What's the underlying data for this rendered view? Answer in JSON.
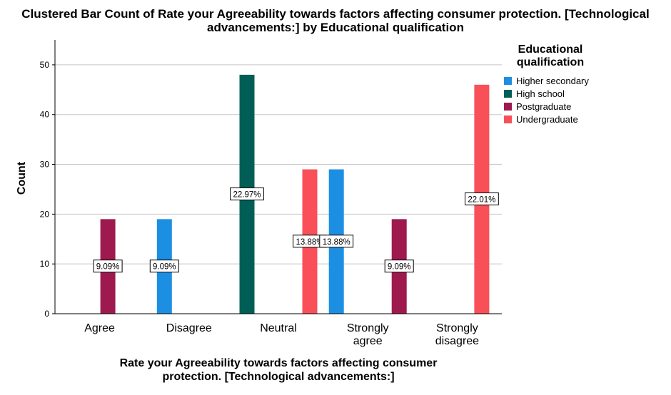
{
  "chart_data": {
    "type": "bar",
    "title": "Clustered Bar Count of Rate your Agreeability towards factors affecting consumer protection. [Technological advancements:] by Educational qualification",
    "title_lines": [
      "Clustered Bar Count of Rate your Agreeability towards factors affecting consumer protection. [Technological",
      "advancements:] by Educational qualification"
    ],
    "xlabel": "Rate your Agreeability towards factors affecting consumer protection. [Technological advancements:]",
    "xlabel_lines": [
      "Rate your Agreeability towards factors affecting consumer",
      "protection. [Technological advancements:]"
    ],
    "ylabel": "Count",
    "ylim": [
      0,
      55
    ],
    "yticks": [
      0,
      10,
      20,
      30,
      40,
      50
    ],
    "grid": true,
    "categories": [
      "Agree",
      "Disagree",
      "Neutral",
      "Strongly agree",
      "Strongly disagree"
    ],
    "category_lines": [
      [
        "Agree"
      ],
      [
        "Disagree"
      ],
      [
        "Neutral"
      ],
      [
        "Strongly",
        "agree"
      ],
      [
        "Strongly",
        "disagree"
      ]
    ],
    "legend_title": "Educational qualification",
    "legend_title_lines": [
      "Educational",
      "qualification"
    ],
    "legend_placement": "right",
    "series": [
      {
        "name": "Higher secondary",
        "color": "#1c8fe3",
        "values": [
          0,
          19,
          0,
          29,
          0
        ],
        "labels": [
          "",
          "9.09%",
          "",
          "13.88%",
          ""
        ]
      },
      {
        "name": "High school",
        "color": "#005e57",
        "values": [
          0,
          0,
          48,
          0,
          0
        ],
        "labels": [
          "",
          "",
          "22.97%",
          "",
          ""
        ]
      },
      {
        "name": "Postgraduate",
        "color": "#9e1a4e",
        "values": [
          19,
          0,
          0,
          19,
          0
        ],
        "labels": [
          "9.09%",
          "",
          "",
          "9.09%",
          ""
        ]
      },
      {
        "name": "Undergraduate",
        "color": "#f94f59",
        "values": [
          0,
          0,
          29,
          0,
          46
        ],
        "labels": [
          "",
          "",
          "13.88%",
          "",
          "22.01%"
        ]
      }
    ]
  }
}
